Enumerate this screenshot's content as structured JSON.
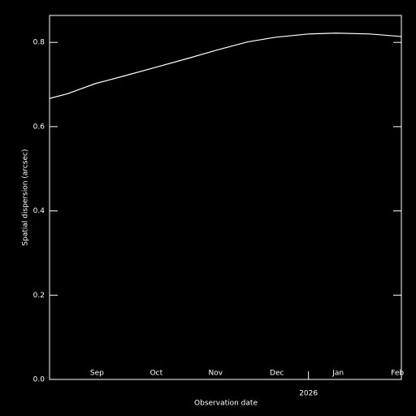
{
  "chart_data": {
    "type": "line",
    "xlabel": "Observation date",
    "ylabel": "Spatial dispersion (arcsec)",
    "x": [
      "2025-08-23",
      "2025-09-01",
      "2025-09-15",
      "2025-10-01",
      "2025-10-15",
      "2025-11-01",
      "2025-11-15",
      "2025-12-01",
      "2025-12-15",
      "2026-01-01",
      "2026-01-15",
      "2026-02-01",
      "2026-02-17"
    ],
    "series": [
      {
        "color": "#ffffff",
        "values": [
          0.667,
          0.678,
          0.702,
          0.722,
          0.74,
          0.762,
          0.781,
          0.801,
          0.812,
          0.82,
          0.822,
          0.82,
          0.814
        ]
      }
    ],
    "xlim": [
      "2025-08-23",
      "2026-02-17"
    ],
    "xticks": [
      {
        "value": "2025-09-16",
        "label": "Sep"
      },
      {
        "value": "2025-10-16",
        "label": "Oct"
      },
      {
        "value": "2025-11-15",
        "label": "Nov"
      },
      {
        "value": "2025-12-16",
        "label": "Dec"
      },
      {
        "value": "2026-01-16",
        "label": "Jan"
      },
      {
        "value": "2026-02-15",
        "label": "Feb"
      }
    ],
    "year_ticks": [
      {
        "value": "2026-01-01",
        "label": "2026"
      }
    ],
    "ylim": [
      0,
      0.864
    ],
    "yticks": [
      {
        "value": 0,
        "label": "0.0"
      },
      0.2,
      0.4,
      0.6,
      0.8
    ]
  }
}
